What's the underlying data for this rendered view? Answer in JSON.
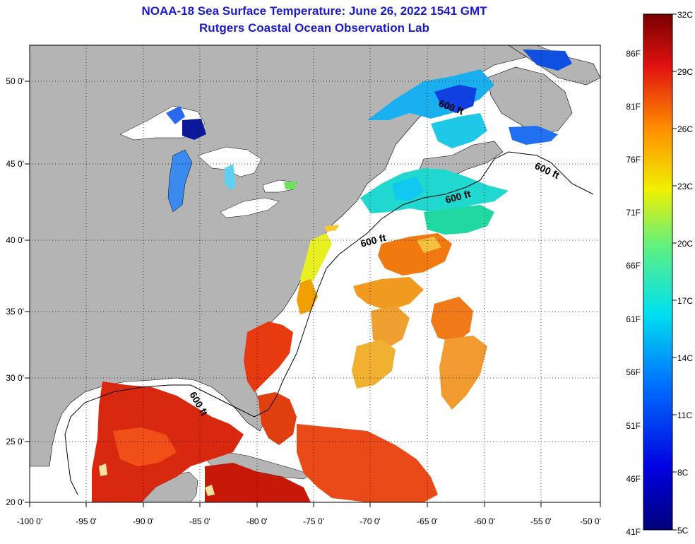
{
  "title": {
    "line1": "NOAA-18 Sea Surface Temperature:  June 26, 2022 1541 GMT",
    "line2": "Rutgers Coastal Ocean Observation Lab"
  },
  "axes": {
    "x_ticks": [
      "-100 0'",
      "-95 0'",
      "-90 0'",
      "-85 0'",
      "-80 0'",
      "-75 0'",
      "-70 0'",
      "-65 0'",
      "-60 0'",
      "-55 0'",
      "-50 0'"
    ],
    "y_ticks": [
      "50 0'",
      "45 0'",
      "40 0'",
      "35 0'",
      "30 0'",
      "25 0'",
      "20 0'"
    ]
  },
  "map": {
    "lon_range": [
      -100,
      -50
    ],
    "lat_range": [
      20,
      52
    ],
    "contour_labels": [
      "600 ft",
      "600 ft",
      "600 ft",
      "600 ft",
      "600 ft"
    ],
    "land_color": "#b4b4b4",
    "ocean_color": "#ffffff"
  },
  "colorbar": {
    "celsius": [
      "32C",
      "29C",
      "26C",
      "23C",
      "20C",
      "17C",
      "14C",
      "11C",
      "8C",
      "5C"
    ],
    "fahrenheit": [
      "86F",
      "81F",
      "76F",
      "71F",
      "66F",
      "61F",
      "56F",
      "51F",
      "46F",
      "41F"
    ],
    "range_c": [
      5,
      32
    ],
    "colors": [
      "#7a0000",
      "#e01010",
      "#ff7a00",
      "#ffe000",
      "#a0f040",
      "#00e0e0",
      "#0080ff",
      "#0000c0",
      "#00007a"
    ]
  }
}
